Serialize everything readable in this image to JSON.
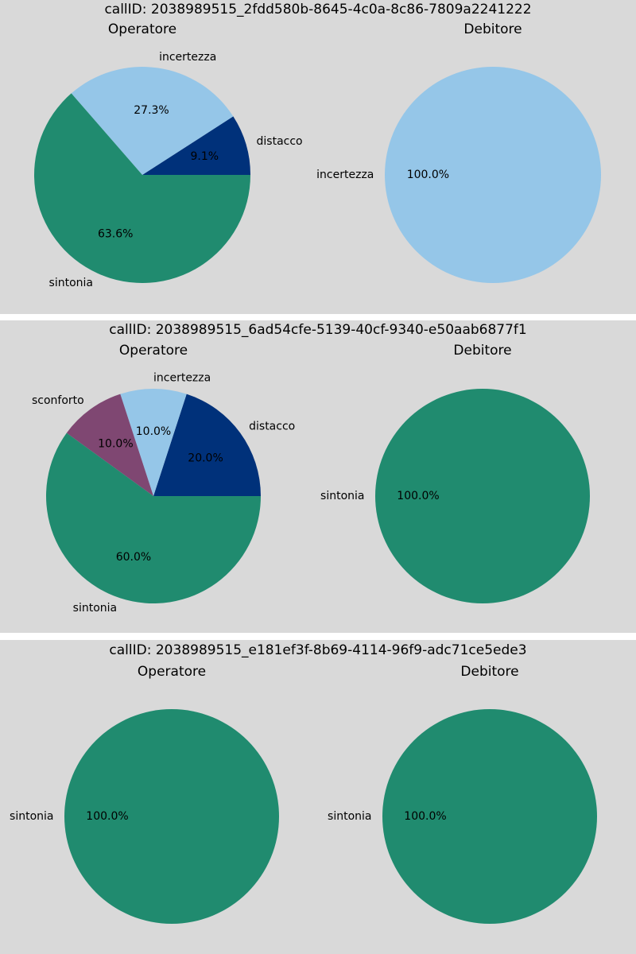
{
  "colors": {
    "distacco": "#00317a",
    "incertezza": "#95c6e8",
    "sintonia": "#208b6f",
    "sconforto": "#7f4772",
    "background": "#d9d9d9"
  },
  "chart_data": [
    {
      "type": "pie",
      "title": "callID: 2038989515_2fdd580b-8645-4c0a-8c86-7809a2241222",
      "subplots": [
        {
          "title": "Operatore",
          "slices": [
            {
              "label": "distacco",
              "value": 9.1,
              "pct_label": "9.1%"
            },
            {
              "label": "incertezza",
              "value": 27.3,
              "pct_label": "27.3%"
            },
            {
              "label": "sintonia",
              "value": 63.6,
              "pct_label": "63.6%"
            }
          ]
        },
        {
          "title": "Debitore",
          "slices": [
            {
              "label": "incertezza",
              "value": 100.0,
              "pct_label": "100.0%"
            }
          ]
        }
      ]
    },
    {
      "type": "pie",
      "title": "callID: 2038989515_6ad54cfe-5139-40cf-9340-e50aab6877f1",
      "subplots": [
        {
          "title": "Operatore",
          "slices": [
            {
              "label": "distacco",
              "value": 20.0,
              "pct_label": "20.0%"
            },
            {
              "label": "incertezza",
              "value": 10.0,
              "pct_label": "10.0%"
            },
            {
              "label": "sconforto",
              "value": 10.0,
              "pct_label": "10.0%"
            },
            {
              "label": "sintonia",
              "value": 60.0,
              "pct_label": "60.0%"
            }
          ]
        },
        {
          "title": "Debitore",
          "slices": [
            {
              "label": "sintonia",
              "value": 100.0,
              "pct_label": "100.0%"
            }
          ]
        }
      ]
    },
    {
      "type": "pie",
      "title": "callID: 2038989515_e181ef3f-8b69-4114-96f9-adc71ce5ede3",
      "subplots": [
        {
          "title": "Operatore",
          "slices": [
            {
              "label": "sintonia",
              "value": 100.0,
              "pct_label": "100.0%"
            }
          ]
        },
        {
          "title": "Debitore",
          "slices": [
            {
              "label": "sintonia",
              "value": 100.0,
              "pct_label": "100.0%"
            }
          ]
        }
      ]
    }
  ]
}
